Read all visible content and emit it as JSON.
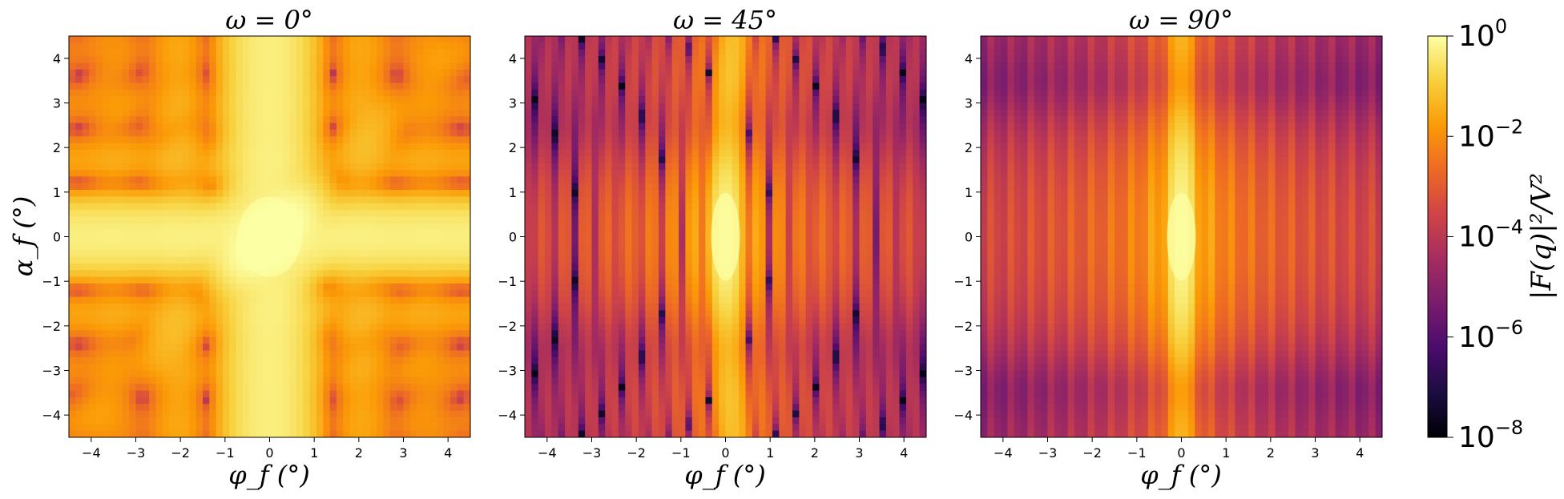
{
  "chart_data": [
    {
      "type": "heatmap",
      "title": "ω = 0°",
      "xlabel": "φ_f (°)",
      "ylabel": "α_f (°)",
      "xlim": [
        -4.5,
        4.5
      ],
      "ylim": [
        -4.5,
        4.5
      ],
      "xticks": [
        "−4",
        "−3",
        "−2",
        "−1",
        "0",
        "1",
        "2",
        "3",
        "4"
      ],
      "yticks": [
        "−4",
        "−3",
        "−2",
        "−1",
        "0",
        "1",
        "2",
        "3",
        "4"
      ],
      "peak": [
        0,
        0
      ]
    },
    {
      "type": "heatmap",
      "title": "ω = 45°",
      "xlabel": "φ_f (°)",
      "xlim": [
        -4.5,
        4.5
      ],
      "ylim": [
        -4.5,
        4.5
      ],
      "xticks": [
        "−4",
        "−3",
        "−2",
        "−1",
        "0",
        "1",
        "2",
        "3",
        "4"
      ],
      "yticks": [
        "−4",
        "−3",
        "−2",
        "−1",
        "0",
        "1",
        "2",
        "3",
        "4"
      ],
      "peak": [
        0,
        0
      ]
    },
    {
      "type": "heatmap",
      "title": "ω = 90°",
      "xlabel": "φ_f (°)",
      "xlim": [
        -4.5,
        4.5
      ],
      "ylim": [
        -4.5,
        4.5
      ],
      "xticks": [
        "−4",
        "−3",
        "−2",
        "−1",
        "0",
        "1",
        "2",
        "3",
        "4"
      ],
      "yticks": [
        "−4",
        "−3",
        "−2",
        "−1",
        "0",
        "1",
        "2",
        "3",
        "4"
      ],
      "peak": [
        0,
        0
      ]
    }
  ],
  "colorbar": {
    "label": "|F(q)|²/V²",
    "scale": "log",
    "range": [
      1e-08,
      1
    ],
    "tick_base": "10",
    "tick_exponents": [
      "0",
      "−2",
      "−4",
      "−6",
      "−8"
    ],
    "colormap": "inferno",
    "colormap_stops": [
      "#000004",
      "#1b0c41",
      "#4a0c6b",
      "#781c6d",
      "#a52c60",
      "#cf4446",
      "#ed6925",
      "#fb9b06",
      "#f7d13d",
      "#fcffa4"
    ]
  }
}
